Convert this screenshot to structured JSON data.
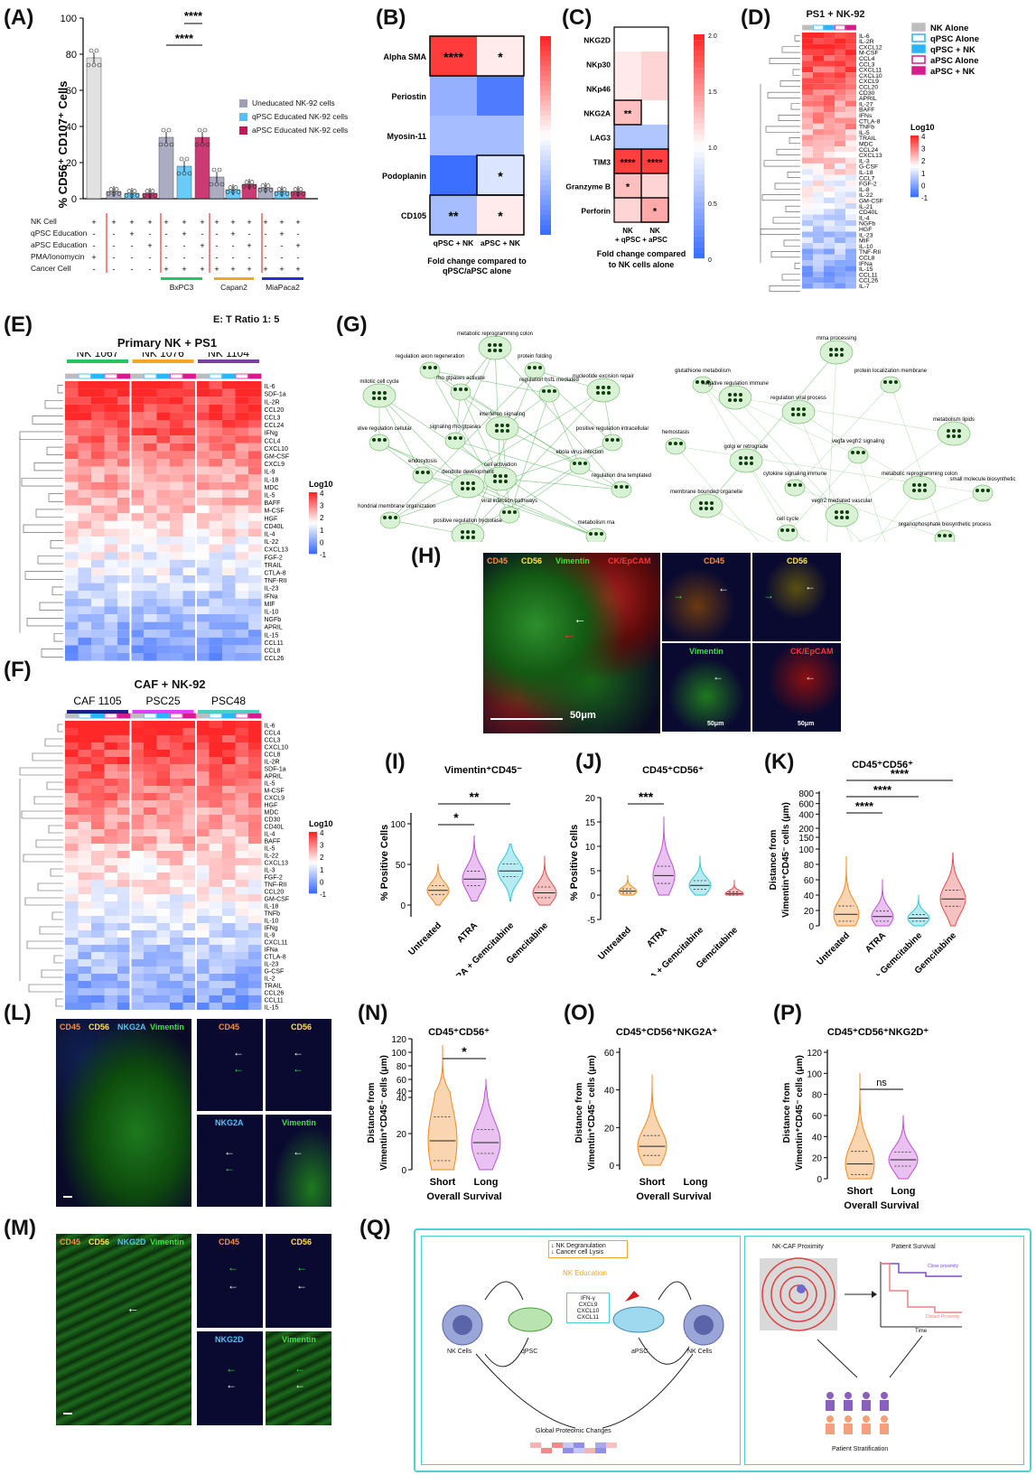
{
  "figure": {
    "panel_labels": [
      "(A)",
      "(B)",
      "(C)",
      "(D)",
      "(E)",
      "(F)",
      "(G)",
      "(H)",
      "(I)",
      "(J)",
      "(K)",
      "(L)",
      "(M)",
      "(N)",
      "(O)",
      "(P)",
      "(Q)"
    ]
  },
  "panelA": {
    "ylabel": "% CD56⁺ CD107⁺ Cells",
    "yticks": [
      "100",
      "80",
      "60",
      "40",
      "20",
      "0"
    ],
    "sig": [
      "****",
      "****"
    ],
    "legend": [
      "Uneducated NK-92 cells",
      "qPSC Educated NK-92 cells",
      "aPSC Educated NK-92 cells"
    ],
    "legend_colors": [
      "#9e9eb8",
      "#4fc3f7",
      "#c2185b"
    ],
    "rows": [
      "NK Cell",
      "qPSC Education",
      "aPSC Education",
      "PMA/Ionomycin",
      "Cancer Cell"
    ],
    "groups": [
      "BxPC3",
      "Capan2",
      "MiaPaca2"
    ],
    "group_colors": [
      "#22c55e",
      "#f5a623",
      "#2b2bd4"
    ],
    "ratio": "E: T Ratio 1: 5"
  },
  "chart_data": [
    {
      "type": "bar",
      "title": "",
      "ylabel": "% CD56⁺ CD107⁺ Cells",
      "ylim": [
        0,
        100
      ],
      "categories": [
        "PMA/Ionomycin",
        "Uneducated",
        "qPSC Educated",
        "aPSC Educated",
        "BxPC3 Uneducated",
        "BxPC3 qPSC Educated",
        "BxPC3 aPSC Educated",
        "Capan2 Uneducated",
        "Capan2 qPSC Educated",
        "Capan2 aPSC Educated",
        "MiaPaca2 Uneducated",
        "MiaPaca2 qPSC Educated",
        "MiaPaca2 aPSC Educated"
      ],
      "values": [
        78,
        4,
        3,
        3,
        34,
        18,
        34,
        12,
        5,
        8,
        6,
        4,
        4
      ]
    },
    {
      "type": "heatmap",
      "title": "Fold change compared to qPSC/aPSC alone",
      "rows": [
        "Alpha SMA",
        "Periostin",
        "Myosin-11",
        "Podoplanin",
        "CD105"
      ],
      "columns": [
        "qPSC + NK",
        "aPSC + NK"
      ],
      "values": [
        [
          2.9,
          2.0
        ],
        [
          1.3,
          0.9
        ],
        [
          1.4,
          1.4
        ],
        [
          0.8,
          1.7
        ],
        [
          1.4,
          2.0
        ]
      ],
      "annotations": [
        [
          "****",
          "*"
        ],
        [
          "",
          ""
        ],
        [
          "",
          ""
        ],
        [
          "",
          "*"
        ],
        [
          "**",
          "*"
        ]
      ],
      "colorbar": [
        1.0,
        1.5,
        2.0,
        2.5,
        3.0
      ]
    },
    {
      "type": "heatmap",
      "title": "Fold change compared to NK cells alone",
      "rows": [
        "NKG2D",
        "NKp30",
        "NKp46",
        "NKG2A",
        "LAG3",
        "TIM3",
        "Granzyme B",
        "Perforin"
      ],
      "columns": [
        "NK + qPSC",
        "NK + aPSC"
      ],
      "values": [
        [
          1.0,
          1.0
        ],
        [
          1.1,
          1.2
        ],
        [
          1.1,
          1.2
        ],
        [
          1.3,
          1.0
        ],
        [
          0.6,
          0.6
        ],
        [
          1.9,
          1.9
        ],
        [
          1.3,
          1.2
        ],
        [
          1.2,
          1.4
        ]
      ],
      "annotations": [
        [
          "",
          ""
        ],
        [
          "",
          ""
        ],
        [
          "",
          ""
        ],
        [
          "**",
          ""
        ],
        [
          "",
          ""
        ],
        [
          "****",
          "****"
        ],
        [
          "*",
          ""
        ],
        [
          "",
          "*"
        ]
      ],
      "colorbar": [
        0,
        0.5,
        1.0,
        1.5,
        2.0
      ]
    }
  ],
  "panelB": {
    "xlabels": [
      "qPSC + NK",
      "aPSC + NK"
    ],
    "caption": "Fold change compared to qPSC/aPSC alone",
    "colorbar_ticks": [
      "3.0",
      "2.5",
      "2.0",
      "1.5",
      "1.0"
    ]
  },
  "panelC": {
    "xlabels": [
      "NK + qPSC",
      "NK + aPSC"
    ],
    "caption": "Fold change compared to NK cells alone",
    "colorbar_ticks": [
      "2.0",
      "1.5",
      "1.0",
      "0.5",
      "0"
    ]
  },
  "panelD": {
    "title": "PS1 + NK-92",
    "legend": [
      "NK Alone",
      "qPSC Alone",
      "qPSC + NK",
      "aPSC Alone",
      "aPSC + NK"
    ],
    "legend_colors": [
      "#bdbdbd",
      "#29b6f6",
      "#29b6f6",
      "#d81b8c",
      "#d81b8c"
    ],
    "log_label": "Log10",
    "log_ticks": [
      "4",
      "3",
      "2",
      "1",
      "0",
      "-1"
    ],
    "rows": [
      "IL-6",
      "IL-2R",
      "CXCL12",
      "M-CSF",
      "CCL4",
      "CCL3",
      "CXCL11",
      "CXCL10",
      "CXCL9",
      "CCL20",
      "CD30",
      "APRIL",
      "IL-27",
      "BAFF",
      "IFNs",
      "CTLA-8",
      "TNFb",
      "IL-5",
      "TRAIL",
      "MDC",
      "CCL24",
      "CXCL13",
      "IL-3",
      "G-CSF",
      "IL-18",
      "CCL7",
      "FGF-2",
      "IL-8",
      "IL-22",
      "GM-CSF",
      "IL-21",
      "CD40L",
      "IL-4",
      "NGFb",
      "HGF",
      "IL-23",
      "MIF",
      "IL-10",
      "TNF-RII",
      "CCL8",
      "IFNa",
      "IL-15",
      "CCL11",
      "CCL26",
      "IL-7"
    ]
  },
  "panelE": {
    "title": "Primary NK + PS1",
    "groups": [
      "NK 1067",
      "NK 1076",
      "NK 1104"
    ],
    "group_colors": [
      "#22c55e",
      "#f5a623",
      "#7b3fa0"
    ],
    "log_label": "Log10",
    "log_ticks": [
      "4",
      "3",
      "2",
      "1",
      "0",
      "-1"
    ],
    "rows": [
      "IL-6",
      "SDF-1a",
      "IL-2R",
      "CCL20",
      "CCL3",
      "CCL24",
      "IFNg",
      "CCL4",
      "CXCL10",
      "GM-CSF",
      "CXCL9",
      "IL-9",
      "IL-18",
      "MDC",
      "IL-5",
      "BAFF",
      "M-CSF",
      "HGF",
      "CD40L",
      "IL-4",
      "IL-22",
      "CXCL13",
      "FGF-2",
      "TRAIL",
      "CTLA-8",
      "TNF-RII",
      "IL-23",
      "IFNa",
      "MIF",
      "IL-10",
      "NGFb",
      "APRIL",
      "IL-15",
      "CCL11",
      "CCL8",
      "CCL26"
    ]
  },
  "panelF": {
    "title": "CAF + NK-92",
    "groups": [
      "CAF 1105",
      "PSC25",
      "PSC48"
    ],
    "group_colors": [
      "#1e1e8a",
      "#e040fb",
      "#4dd0c4"
    ],
    "log_label": "Log10",
    "log_ticks": [
      "4",
      "3",
      "2",
      "1",
      "0",
      "-1"
    ],
    "rows": [
      "IL-6",
      "CCL4",
      "CCL3",
      "CXCL10",
      "CCL8",
      "IL-2R",
      "SDF-1a",
      "APRIL",
      "IL-5",
      "M-CSF",
      "CXCL9",
      "HGF",
      "MDC",
      "CD30",
      "CD40L",
      "IL-4",
      "BAFF",
      "IL-5",
      "IL-22",
      "CXCL13",
      "IL-3",
      "FGF-2",
      "TNF-RII",
      "CCL20",
      "GM-CSF",
      "IL-18",
      "TNFb",
      "IL-10",
      "IFNg",
      "IL-9",
      "CXCL11",
      "IFNa",
      "CTLA-8",
      "IL-23",
      "G-CSF",
      "IL-2",
      "TRAIL",
      "CCL26",
      "CCL11",
      "IL-15"
    ]
  },
  "panelG": {
    "left_clusters": [
      "metabolic reprogramming colon",
      "regulation axon regeneration",
      "protein folding",
      "mitotic cell cycle",
      "rho gtpases activate",
      "regulation hsf1 mediated",
      "nucleotide excision repair",
      "negative regulation cellular",
      "signaling rho gtpases",
      "interferon signaling",
      "positive regulation intracellular",
      "endocytosis",
      "cell activation",
      "ebola virus infection",
      "mitochondrial membrane organization",
      "dendrite development",
      "regulation dna templated",
      "viral infection pathways",
      "positive regulation hydrolase",
      "metabolism rna"
    ],
    "right_clusters": [
      "mrna processing",
      "glutathione metabolism",
      "negative regulation immune",
      "protein localization membrane",
      "regulation viral process",
      "hemostasis",
      "golgi er retrograde",
      "vegfa vegfr2 signaling",
      "metabolism lipids",
      "cytokine signaling immune",
      "metabolic reprogramming colon",
      "small molecule biosynthetic",
      "membrane bounded organelle",
      "cell cycle",
      "vegfr2 mediated vascular",
      "organophosphate biosynthetic process",
      "hepatitis hepatocellular carcinoma",
      "actin filament based",
      "viral infection pathways",
      "signaling rho gtpases"
    ]
  },
  "panelH": {
    "main_labels": [
      "CD45",
      "CD56",
      "Vimentin",
      "CK/EpCAM"
    ],
    "main_colors": [
      "#ff8c3a",
      "#ffe14d",
      "#39e639",
      "#ff3333"
    ],
    "scale_main": "50μm",
    "sub_labels": [
      "CD45",
      "CD56",
      "Vimentin",
      "CK/EpCAM"
    ],
    "scale_sub": "50μm"
  },
  "panelI": {
    "title": "Vimentin⁺CD45⁻",
    "ylabel": "% Positive Cells",
    "yticks": [
      "100",
      "50",
      "0"
    ],
    "xlabels": [
      "Untreated",
      "ATRA",
      "ATRA + Gemcitabine",
      "Gemcitabine"
    ],
    "sig": [
      "*",
      "**"
    ]
  },
  "panelJ": {
    "title": "CD45⁺CD56⁺",
    "ylabel": "% Positive Cells",
    "yticks": [
      "20",
      "15",
      "10",
      "5",
      "0",
      "-5"
    ],
    "xlabels": [
      "Untreated",
      "ATRA",
      "ATRA + Gemcitabine",
      "Gemcitabine"
    ],
    "sig": [
      "***"
    ]
  },
  "panelK": {
    "title": "CD45⁺CD56⁺",
    "ylabel": "Distance from Vimentin⁺CD45⁻ cells (μm)",
    "yticks": [
      "800",
      "600",
      "400",
      "200",
      "150",
      "100",
      "80",
      "60",
      "40",
      "20",
      "0"
    ],
    "xlabels": [
      "Untreated",
      "ATRA",
      "ATRA + Gemcitabine",
      "Gemcitabine"
    ],
    "sig": [
      "****",
      "****",
      "****"
    ]
  },
  "panelL": {
    "main_labels": [
      "CD45",
      "CD56",
      "NKG2A",
      "Vimentin"
    ],
    "main_colors": [
      "#ff8c3a",
      "#ffe14d",
      "#4fc3f7",
      "#39e639"
    ],
    "sub_labels": [
      "CD45",
      "CD56",
      "NKG2A",
      "Vimentin"
    ]
  },
  "panelM": {
    "main_labels": [
      "CD45",
      "CD56",
      "NKG2D",
      "Vimentin"
    ],
    "main_colors": [
      "#ff8c3a",
      "#ffe14d",
      "#4fc3f7",
      "#39e639"
    ],
    "sub_labels": [
      "CD45",
      "CD56",
      "NKG2D",
      "Vimentin"
    ]
  },
  "panelN": {
    "title": "CD45⁺CD56⁺",
    "ylabel": "Distance from Vimentin⁺CD45⁻ cells (μm)",
    "yticks": [
      "120",
      "100",
      "80",
      "60",
      "40",
      "40",
      "20",
      "0"
    ],
    "xlabels": [
      "Short",
      "Long"
    ],
    "xaxis": "Overall Survival",
    "sig": "*"
  },
  "panelO": {
    "title": "CD45⁺CD56⁺NKG2A⁺",
    "ylabel": "Distance from Vimentin⁺CD45⁻ cells (μm)",
    "yticks": [
      "60",
      "40",
      "20",
      "0"
    ],
    "xlabels": [
      "Short",
      "Long"
    ],
    "xaxis": "Overall Survival"
  },
  "panelP": {
    "title": "CD45⁺CD56⁺NKG2D⁺",
    "ylabel": "Distance from Vimentin⁺CD45⁻ cells (μm)",
    "yticks": [
      "120",
      "100",
      "80",
      "60",
      "40",
      "20",
      "0"
    ],
    "xlabels": [
      "Short",
      "Long"
    ],
    "xaxis": "Overall Survival",
    "sig": "ns"
  },
  "panelQ": {
    "nk_degranulation": "NK Degranulation",
    "cancer_lysis": "Cancer cell Lysis",
    "nk_education": "NK Education",
    "cytokines": [
      "IFN-γ",
      "CXCL9",
      "CXCL10",
      "CXCL11"
    ],
    "nk_cells_left": "NK Cells",
    "qpsc": "qPSC",
    "apsc": "aPSC",
    "nk_cells_right": "NK Cells",
    "global": "Global Proteomic Changes",
    "proximity": "NK-CAF Proximity",
    "survival": "Patient Survival",
    "time": "Time",
    "close": "Close proximity",
    "distant": "Distant Proximity",
    "stratification": "Patient Stratification"
  }
}
